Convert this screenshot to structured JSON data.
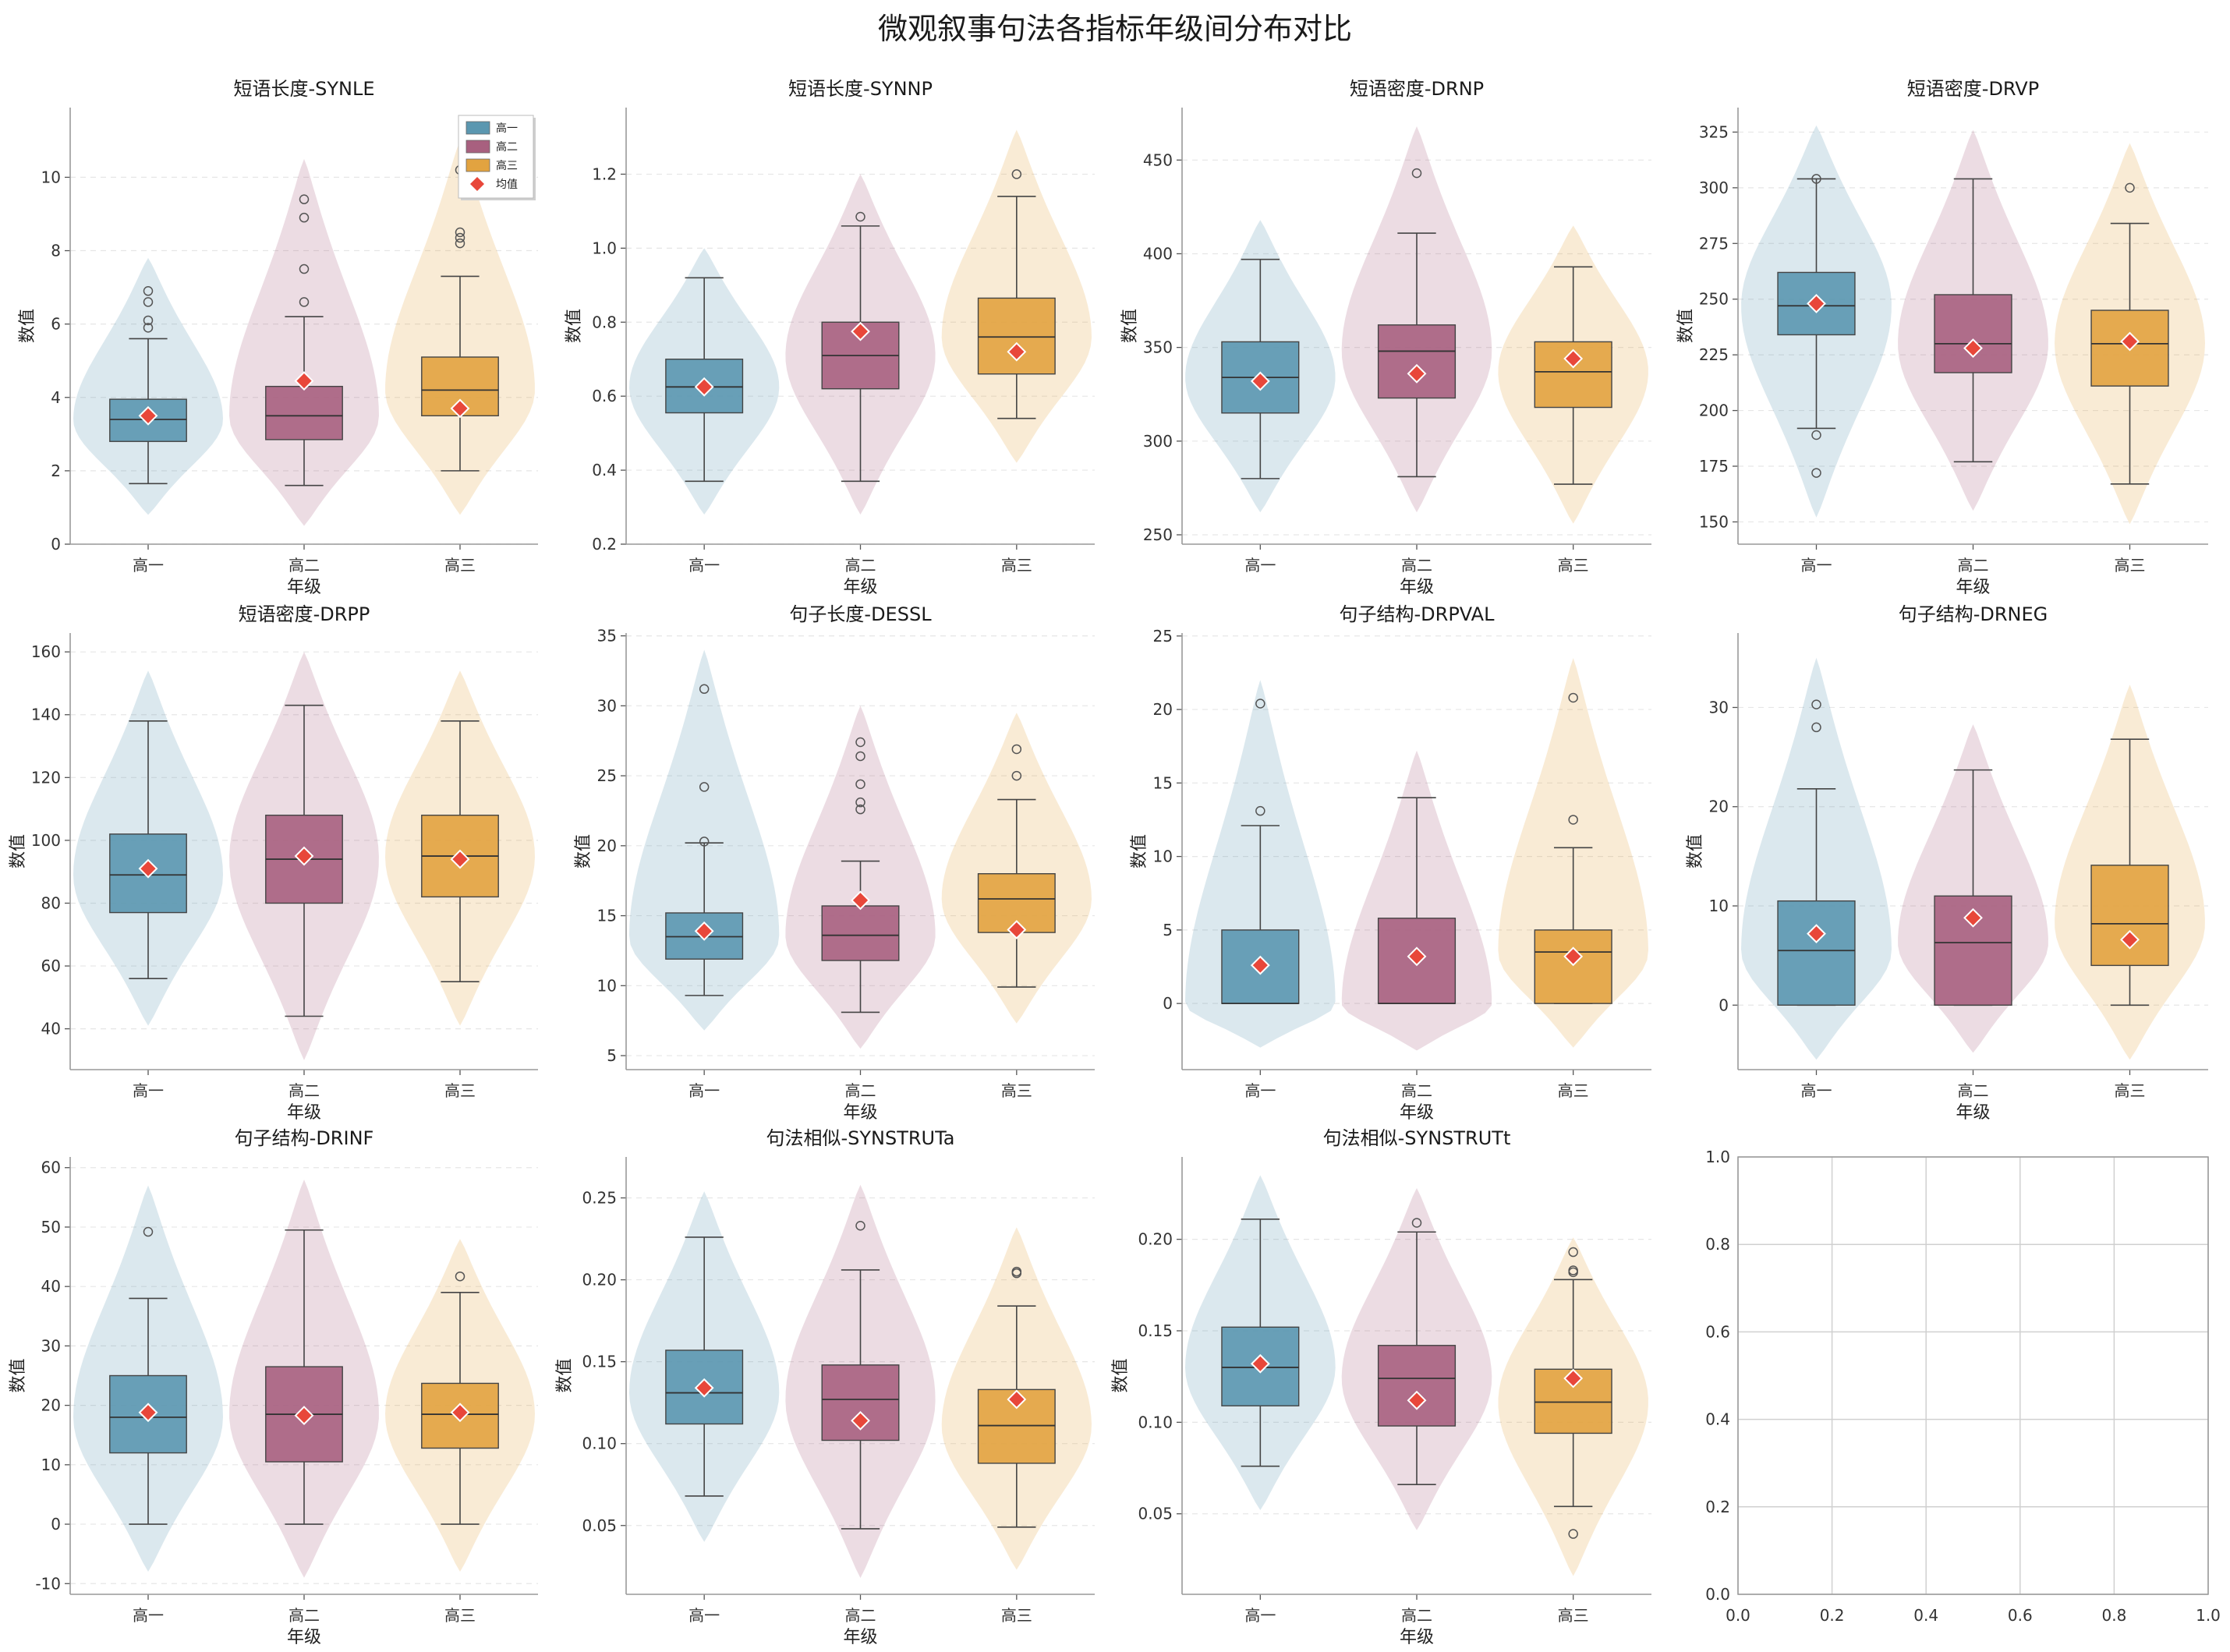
{
  "title": "微观叙事句法各指标年级间分布对比",
  "colors": {
    "高一": "#5b97b0",
    "高二": "#a8607f",
    "高三": "#e2a340",
    "mean": "#e8473a"
  },
  "chart_data": [
    {
      "type": "violin-box",
      "title": "短语长度-SYNLE",
      "xlabel": "年级",
      "ylabel": "数值",
      "categories": [
        "高一",
        "高二",
        "高三"
      ],
      "ylim": [
        0,
        11.9
      ],
      "yticks": [
        "0",
        "2",
        "4",
        "6",
        "8",
        "10"
      ],
      "ytick_values": [
        0,
        2,
        4,
        6,
        8,
        10
      ],
      "legend": {
        "position": "upper-right",
        "entries": [
          "高一",
          "高二",
          "高三",
          "均值"
        ]
      },
      "series": [
        {
          "name": "高一",
          "q1": 2.8,
          "median": 3.4,
          "q3": 3.95,
          "whisker_low": 1.65,
          "whisker_high": 5.6,
          "mean": 3.5,
          "outliers": [
            5.9,
            6.1,
            6.6,
            6.9
          ],
          "violin": [
            0.8,
            7.8
          ]
        },
        {
          "name": "高二",
          "q1": 2.85,
          "median": 3.5,
          "q3": 4.3,
          "whisker_low": 1.6,
          "whisker_high": 6.2,
          "mean": 4.45,
          "outliers": [
            6.6,
            7.5,
            8.9,
            9.4
          ],
          "violin": [
            0.5,
            10.5
          ]
        },
        {
          "name": "高三",
          "q1": 3.5,
          "median": 4.2,
          "q3": 5.1,
          "whisker_low": 2.0,
          "whisker_high": 7.3,
          "mean": 3.7,
          "outliers": [
            8.2,
            8.35,
            8.5,
            10.2
          ],
          "violin": [
            0.8,
            11.0
          ]
        }
      ]
    },
    {
      "type": "violin-box",
      "title": "短语长度-SYNNP",
      "xlabel": "年级",
      "ylabel": "数值",
      "categories": [
        "高一",
        "高二",
        "高三"
      ],
      "ylim": [
        0.2,
        1.38
      ],
      "yticks": [
        "0.2",
        "0.4",
        "0.6",
        "0.8",
        "1.0",
        "1.2"
      ],
      "ytick_values": [
        0.2,
        0.4,
        0.6,
        0.8,
        1.0,
        1.2
      ],
      "series": [
        {
          "name": "高一",
          "q1": 0.555,
          "median": 0.625,
          "q3": 0.7,
          "whisker_low": 0.37,
          "whisker_high": 0.92,
          "mean": 0.625,
          "outliers": [],
          "violin": [
            0.28,
            1.0
          ]
        },
        {
          "name": "高二",
          "q1": 0.62,
          "median": 0.71,
          "q3": 0.8,
          "whisker_low": 0.37,
          "whisker_high": 1.06,
          "mean": 0.775,
          "outliers": [
            1.085
          ],
          "violin": [
            0.28,
            1.2
          ]
        },
        {
          "name": "高三",
          "q1": 0.66,
          "median": 0.76,
          "q3": 0.865,
          "whisker_low": 0.54,
          "whisker_high": 1.14,
          "mean": 0.72,
          "outliers": [
            1.2
          ],
          "violin": [
            0.42,
            1.32
          ]
        }
      ]
    },
    {
      "type": "violin-box",
      "title": "短语密度-DRNP",
      "xlabel": "年级",
      "ylabel": "数值",
      "categories": [
        "高一",
        "高二",
        "高三"
      ],
      "ylim": [
        245,
        478
      ],
      "yticks": [
        "250",
        "300",
        "350",
        "400",
        "450"
      ],
      "ytick_values": [
        250,
        300,
        350,
        400,
        450
      ],
      "series": [
        {
          "name": "高一",
          "q1": 315,
          "median": 334,
          "q3": 353,
          "whisker_low": 280,
          "whisker_high": 397,
          "mean": 332,
          "outliers": [],
          "violin": [
            262,
            418
          ]
        },
        {
          "name": "高二",
          "q1": 323,
          "median": 348,
          "q3": 362,
          "whisker_low": 281,
          "whisker_high": 411,
          "mean": 336,
          "outliers": [
            443
          ],
          "violin": [
            262,
            468
          ]
        },
        {
          "name": "高三",
          "q1": 318,
          "median": 337,
          "q3": 353,
          "whisker_low": 277,
          "whisker_high": 393,
          "mean": 344,
          "outliers": [],
          "violin": [
            256,
            415
          ]
        }
      ]
    },
    {
      "type": "violin-box",
      "title": "短语密度-DRVP",
      "xlabel": "年级",
      "ylabel": "数值",
      "categories": [
        "高一",
        "高二",
        "高三"
      ],
      "ylim": [
        140,
        336
      ],
      "yticks": [
        "150",
        "175",
        "200",
        "225",
        "250",
        "275",
        "300",
        "325"
      ],
      "ytick_values": [
        150,
        175,
        200,
        225,
        250,
        275,
        300,
        325
      ],
      "series": [
        {
          "name": "高一",
          "q1": 234,
          "median": 247,
          "q3": 262,
          "whisker_low": 192,
          "whisker_high": 304,
          "mean": 248,
          "outliers": [
            172,
            189,
            304
          ],
          "violin": [
            152,
            328
          ]
        },
        {
          "name": "高二",
          "q1": 217,
          "median": 230,
          "q3": 252,
          "whisker_low": 177,
          "whisker_high": 304,
          "mean": 228,
          "outliers": [],
          "violin": [
            155,
            326
          ]
        },
        {
          "name": "高三",
          "q1": 211,
          "median": 230,
          "q3": 245,
          "whisker_low": 167,
          "whisker_high": 284,
          "mean": 231,
          "outliers": [
            300
          ],
          "violin": [
            149,
            320
          ]
        }
      ]
    },
    {
      "type": "violin-box",
      "title": "短语密度-DRPP",
      "xlabel": "年级",
      "ylabel": "数值",
      "categories": [
        "高一",
        "高二",
        "高三"
      ],
      "ylim": [
        27,
        166
      ],
      "yticks": [
        "40",
        "60",
        "80",
        "100",
        "120",
        "140",
        "160"
      ],
      "ytick_values": [
        40,
        60,
        80,
        100,
        120,
        140,
        160
      ],
      "series": [
        {
          "name": "高一",
          "q1": 77,
          "median": 89,
          "q3": 102,
          "whisker_low": 56,
          "whisker_high": 138,
          "mean": 91,
          "outliers": [],
          "violin": [
            41,
            154
          ]
        },
        {
          "name": "高二",
          "q1": 80,
          "median": 94,
          "q3": 108,
          "whisker_low": 44,
          "whisker_high": 143,
          "mean": 95,
          "outliers": [],
          "violin": [
            30,
            160
          ]
        },
        {
          "name": "高三",
          "q1": 82,
          "median": 95,
          "q3": 108,
          "whisker_low": 55,
          "whisker_high": 138,
          "mean": 94,
          "outliers": [],
          "violin": [
            41,
            154
          ]
        }
      ]
    },
    {
      "type": "violin-box",
      "title": "句子长度-DESSL",
      "xlabel": "年级",
      "ylabel": "数值",
      "categories": [
        "高一",
        "高二",
        "高三"
      ],
      "ylim": [
        4,
        35.2
      ],
      "yticks": [
        "5",
        "10",
        "15",
        "20",
        "25",
        "30",
        "35"
      ],
      "ytick_values": [
        5,
        10,
        15,
        20,
        25,
        30,
        35
      ],
      "series": [
        {
          "name": "高一",
          "q1": 11.9,
          "median": 13.5,
          "q3": 15.2,
          "whisker_low": 9.3,
          "whisker_high": 20.2,
          "mean": 13.9,
          "outliers": [
            20.3,
            24.2,
            31.2
          ],
          "violin": [
            6.8,
            34.0
          ]
        },
        {
          "name": "高二",
          "q1": 11.8,
          "median": 13.6,
          "q3": 15.7,
          "whisker_low": 8.1,
          "whisker_high": 18.9,
          "mean": 16.1,
          "outliers": [
            22.6,
            23.1,
            24.4,
            26.4,
            27.4
          ],
          "violin": [
            5.5,
            30.0
          ]
        },
        {
          "name": "高三",
          "q1": 13.8,
          "median": 16.2,
          "q3": 18.0,
          "whisker_low": 9.9,
          "whisker_high": 23.3,
          "mean": 14.0,
          "outliers": [
            25.0,
            26.9
          ],
          "violin": [
            7.3,
            29.5
          ]
        }
      ]
    },
    {
      "type": "violin-box",
      "title": "句子结构-DRPVAL",
      "xlabel": "年级",
      "ylabel": "数值",
      "categories": [
        "高一",
        "高二",
        "高三"
      ],
      "ylim": [
        -4.5,
        25.2
      ],
      "yticks": [
        "0",
        "5",
        "10",
        "15",
        "20",
        "25"
      ],
      "ytick_values": [
        0,
        5,
        10,
        15,
        20,
        25
      ],
      "series": [
        {
          "name": "高一",
          "q1": 0,
          "median": 0,
          "q3": 5.0,
          "whisker_low": 0,
          "whisker_high": 12.1,
          "mean": 2.6,
          "outliers": [
            13.1,
            20.4
          ],
          "violin": [
            -3.0,
            22.0
          ]
        },
        {
          "name": "高二",
          "q1": 0,
          "median": 0,
          "q3": 5.8,
          "whisker_low": 0,
          "whisker_high": 14.0,
          "mean": 3.2,
          "outliers": [],
          "violin": [
            -3.2,
            17.2
          ]
        },
        {
          "name": "高三",
          "q1": 0,
          "median": 3.5,
          "q3": 5.0,
          "whisker_low": 0,
          "whisker_high": 10.6,
          "mean": 3.2,
          "outliers": [
            12.5,
            20.8
          ],
          "violin": [
            -3.0,
            23.5
          ]
        }
      ]
    },
    {
      "type": "violin-box",
      "title": "句子结构-DRNEG",
      "xlabel": "年级",
      "ylabel": "数值",
      "categories": [
        "高一",
        "高二",
        "高三"
      ],
      "ylim": [
        -6.5,
        37.5
      ],
      "yticks": [
        "0",
        "10",
        "20",
        "30"
      ],
      "ytick_values": [
        0,
        10,
        20,
        30
      ],
      "series": [
        {
          "name": "高一",
          "q1": 0,
          "median": 5.5,
          "q3": 10.5,
          "whisker_low": 0,
          "whisker_high": 21.8,
          "mean": 7.2,
          "outliers": [
            28.0,
            30.3
          ],
          "violin": [
            -5.5,
            35.0
          ]
        },
        {
          "name": "高二",
          "q1": 0,
          "median": 6.3,
          "q3": 11.0,
          "whisker_low": 0,
          "whisker_high": 23.7,
          "mean": 8.8,
          "outliers": [],
          "violin": [
            -4.8,
            28.3
          ]
        },
        {
          "name": "高三",
          "q1": 4.0,
          "median": 8.2,
          "q3": 14.1,
          "whisker_low": 0,
          "whisker_high": 26.8,
          "mean": 6.6,
          "outliers": [],
          "violin": [
            -5.5,
            32.3
          ]
        }
      ]
    },
    {
      "type": "violin-box",
      "title": "句子结构-DRINF",
      "xlabel": "年级",
      "ylabel": "数值",
      "categories": [
        "高一",
        "高二",
        "高三"
      ],
      "ylim": [
        -11.8,
        61.8
      ],
      "yticks": [
        "-10",
        "0",
        "10",
        "20",
        "30",
        "40",
        "50",
        "60"
      ],
      "ytick_values": [
        -10,
        0,
        10,
        20,
        30,
        40,
        50,
        60
      ],
      "series": [
        {
          "name": "高一",
          "q1": 12,
          "median": 18,
          "q3": 25,
          "whisker_low": 0,
          "whisker_high": 38,
          "mean": 18.8,
          "outliers": [
            49.2
          ],
          "violin": [
            -8,
            57
          ]
        },
        {
          "name": "高二",
          "q1": 10.5,
          "median": 18.5,
          "q3": 26.5,
          "whisker_low": 0,
          "whisker_high": 49.5,
          "mean": 18.3,
          "outliers": [],
          "violin": [
            -9,
            58
          ]
        },
        {
          "name": "高三",
          "q1": 12.8,
          "median": 18.5,
          "q3": 23.7,
          "whisker_low": 0,
          "whisker_high": 39,
          "mean": 18.8,
          "outliers": [
            41.7
          ],
          "violin": [
            -8,
            48
          ]
        }
      ]
    },
    {
      "type": "violin-box",
      "title": "句法相似-SYNSTRUTa",
      "xlabel": "年级",
      "ylabel": "数值",
      "categories": [
        "高一",
        "高二",
        "高三"
      ],
      "ylim": [
        0.008,
        0.275
      ],
      "yticks": [
        "0.05",
        "0.10",
        "0.15",
        "0.20",
        "0.25"
      ],
      "ytick_values": [
        0.05,
        0.1,
        0.15,
        0.2,
        0.25
      ],
      "series": [
        {
          "name": "高一",
          "q1": 0.112,
          "median": 0.131,
          "q3": 0.157,
          "whisker_low": 0.068,
          "whisker_high": 0.226,
          "mean": 0.134,
          "outliers": [],
          "violin": [
            0.04,
            0.254
          ]
        },
        {
          "name": "高二",
          "q1": 0.102,
          "median": 0.127,
          "q3": 0.148,
          "whisker_low": 0.048,
          "whisker_high": 0.206,
          "mean": 0.114,
          "outliers": [
            0.233
          ],
          "violin": [
            0.018,
            0.258
          ]
        },
        {
          "name": "高三",
          "q1": 0.088,
          "median": 0.111,
          "q3": 0.133,
          "whisker_low": 0.049,
          "whisker_high": 0.184,
          "mean": 0.127,
          "outliers": [
            0.204,
            0.205
          ],
          "violin": [
            0.023,
            0.232
          ]
        }
      ]
    },
    {
      "type": "violin-box",
      "title": "句法相似-SYNSTRUTt",
      "xlabel": "年级",
      "ylabel": "数值",
      "categories": [
        "高一",
        "高二",
        "高三"
      ],
      "ylim": [
        0.006,
        0.245
      ],
      "yticks": [
        "0.05",
        "0.10",
        "0.15",
        "0.20"
      ],
      "ytick_values": [
        0.05,
        0.1,
        0.15,
        0.2
      ],
      "series": [
        {
          "name": "高一",
          "q1": 0.109,
          "median": 0.13,
          "q3": 0.152,
          "whisker_low": 0.076,
          "whisker_high": 0.211,
          "mean": 0.132,
          "outliers": [],
          "violin": [
            0.052,
            0.235
          ]
        },
        {
          "name": "高二",
          "q1": 0.098,
          "median": 0.124,
          "q3": 0.142,
          "whisker_low": 0.066,
          "whisker_high": 0.204,
          "mean": 0.112,
          "outliers": [
            0.209
          ],
          "violin": [
            0.041,
            0.228
          ]
        },
        {
          "name": "高三",
          "q1": 0.094,
          "median": 0.111,
          "q3": 0.129,
          "whisker_low": 0.054,
          "whisker_high": 0.178,
          "mean": 0.124,
          "outliers": [
            0.039,
            0.182,
            0.183,
            0.193
          ],
          "violin": [
            0.016,
            0.201
          ]
        }
      ]
    },
    {
      "type": "empty",
      "title": "",
      "xlim": [
        0,
        1
      ],
      "ylim": [
        0,
        1
      ],
      "grid": true,
      "xticks": [
        "0.0",
        "0.2",
        "0.4",
        "0.6",
        "0.8",
        "1.0"
      ],
      "yticks": [
        "0.0",
        "0.2",
        "0.4",
        "0.6",
        "0.8",
        "1.0"
      ]
    }
  ]
}
